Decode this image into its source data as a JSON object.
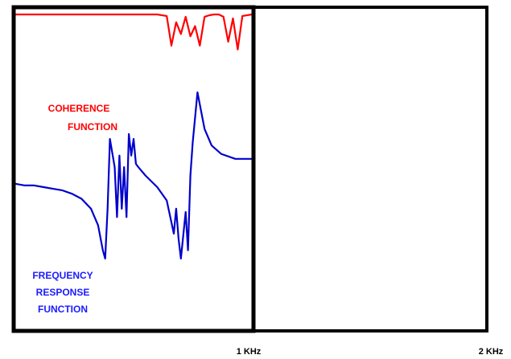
{
  "chart_data": {
    "type": "line",
    "xunit": "KHz",
    "xlim": [
      0,
      2
    ],
    "x_ticks": [
      {
        "x": 1,
        "label": "1 KHz"
      },
      {
        "x": 2,
        "label": "2 KHz"
      }
    ],
    "grid": false,
    "legend": "none",
    "annotations": {
      "coherence": [
        "COHERENCE",
        "FUNCTION"
      ],
      "frf": [
        "FREQUENCY",
        "RESPONSE",
        "FUNCTION"
      ]
    },
    "series": [
      {
        "label": "COHERENCE FUNCTION",
        "color": "#ff0000",
        "x": [
          0,
          0.6,
          0.64,
          0.66,
          0.68,
          0.7,
          0.72,
          0.74,
          0.76,
          0.78,
          0.8,
          0.82,
          0.84,
          0.86,
          0.88,
          0.9,
          0.92,
          0.94,
          0.96,
          1.0
        ],
        "values": [
          1.0,
          1.0,
          0.98,
          0.6,
          0.9,
          0.75,
          0.97,
          0.72,
          0.85,
          0.6,
          0.97,
          0.99,
          1.0,
          1.0,
          0.97,
          0.65,
          0.95,
          0.55,
          0.98,
          1.0
        ]
      },
      {
        "label": "FREQUENCY RESPONSE FUNCTION",
        "color": "#0000cc",
        "x": [
          0,
          0.04,
          0.08,
          0.12,
          0.16,
          0.2,
          0.24,
          0.28,
          0.32,
          0.35,
          0.37,
          0.38,
          0.39,
          0.4,
          0.42,
          0.43,
          0.44,
          0.45,
          0.46,
          0.47,
          0.48,
          0.49,
          0.5,
          0.51,
          0.52,
          0.55,
          0.6,
          0.64,
          0.67,
          0.68,
          0.69,
          0.7,
          0.72,
          0.73,
          0.74,
          0.75,
          0.77,
          0.8,
          0.83,
          0.87,
          0.93,
          1.0
        ],
        "values": [
          0.45,
          0.44,
          0.44,
          0.43,
          0.42,
          0.41,
          0.39,
          0.36,
          0.3,
          0.2,
          0.05,
          0.0,
          0.3,
          0.72,
          0.55,
          0.25,
          0.62,
          0.3,
          0.55,
          0.25,
          0.75,
          0.62,
          0.72,
          0.57,
          0.55,
          0.5,
          0.43,
          0.35,
          0.15,
          0.3,
          0.12,
          0.0,
          0.28,
          0.05,
          0.5,
          0.7,
          1.0,
          0.78,
          0.68,
          0.63,
          0.6,
          0.6
        ]
      }
    ]
  }
}
